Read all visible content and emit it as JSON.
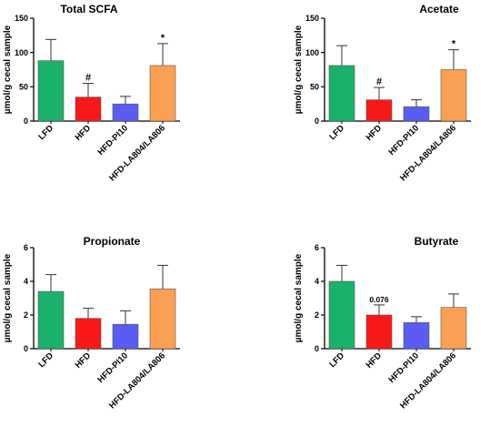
{
  "chart_data": [
    {
      "type": "bar",
      "title": "Total SCFA",
      "ylabel": "µmol/g cecal sample",
      "categories": [
        "LFD",
        "HFD",
        "HFD-PI10",
        "HFD-LA804/LA806"
      ],
      "values": [
        88,
        35,
        25,
        81
      ],
      "errors": [
        31,
        20,
        11,
        32
      ],
      "ylim": [
        0,
        150
      ],
      "yticks": [
        "0",
        "50",
        "100",
        "150"
      ],
      "annotations": [
        "",
        "#",
        "",
        "*"
      ],
      "colors": [
        "#1ab26b",
        "#f91818",
        "#5a5cf2",
        "#fba052"
      ]
    },
    {
      "type": "bar",
      "title": "Acetate",
      "ylabel": "µmol/g cecal sample",
      "categories": [
        "LFD",
        "HFD",
        "HFD-PI10",
        "HFD-LA804/LA806"
      ],
      "values": [
        81,
        31,
        21,
        75
      ],
      "errors": [
        29,
        18,
        10,
        29
      ],
      "ylim": [
        0,
        150
      ],
      "yticks": [
        "0",
        "50",
        "100",
        "150"
      ],
      "annotations": [
        "",
        "#",
        "",
        "*"
      ],
      "colors": [
        "#1ab26b",
        "#f91818",
        "#5a5cf2",
        "#fba052"
      ]
    },
    {
      "type": "bar",
      "title": "Propionate",
      "ylabel": "µmol/g cecal sample",
      "categories": [
        "LFD",
        "HFD",
        "HFD-PI10",
        "HFD-LA804/LA806"
      ],
      "values": [
        3.4,
        1.8,
        1.45,
        3.55
      ],
      "errors": [
        1.0,
        0.6,
        0.8,
        1.4
      ],
      "ylim": [
        0,
        6
      ],
      "yticks": [
        "0",
        "2",
        "4",
        "6"
      ],
      "annotations": [
        "",
        "",
        "",
        ""
      ],
      "colors": [
        "#1ab26b",
        "#f91818",
        "#5a5cf2",
        "#fba052"
      ]
    },
    {
      "type": "bar",
      "title": "Butyrate",
      "ylabel": "µmol/g cecal sample",
      "categories": [
        "LFD",
        "HFD",
        "HFD-PI10",
        "HFD-LA804/LA806"
      ],
      "values": [
        4.0,
        2.0,
        1.55,
        2.45
      ],
      "errors": [
        0.95,
        0.6,
        0.35,
        0.8
      ],
      "ylim": [
        0,
        6
      ],
      "yticks": [
        "0",
        "2",
        "4",
        "6"
      ],
      "annotations": [
        "",
        "0.076",
        "",
        ""
      ],
      "colors": [
        "#1ab26b",
        "#f91818",
        "#5a5cf2",
        "#fba052"
      ]
    }
  ]
}
